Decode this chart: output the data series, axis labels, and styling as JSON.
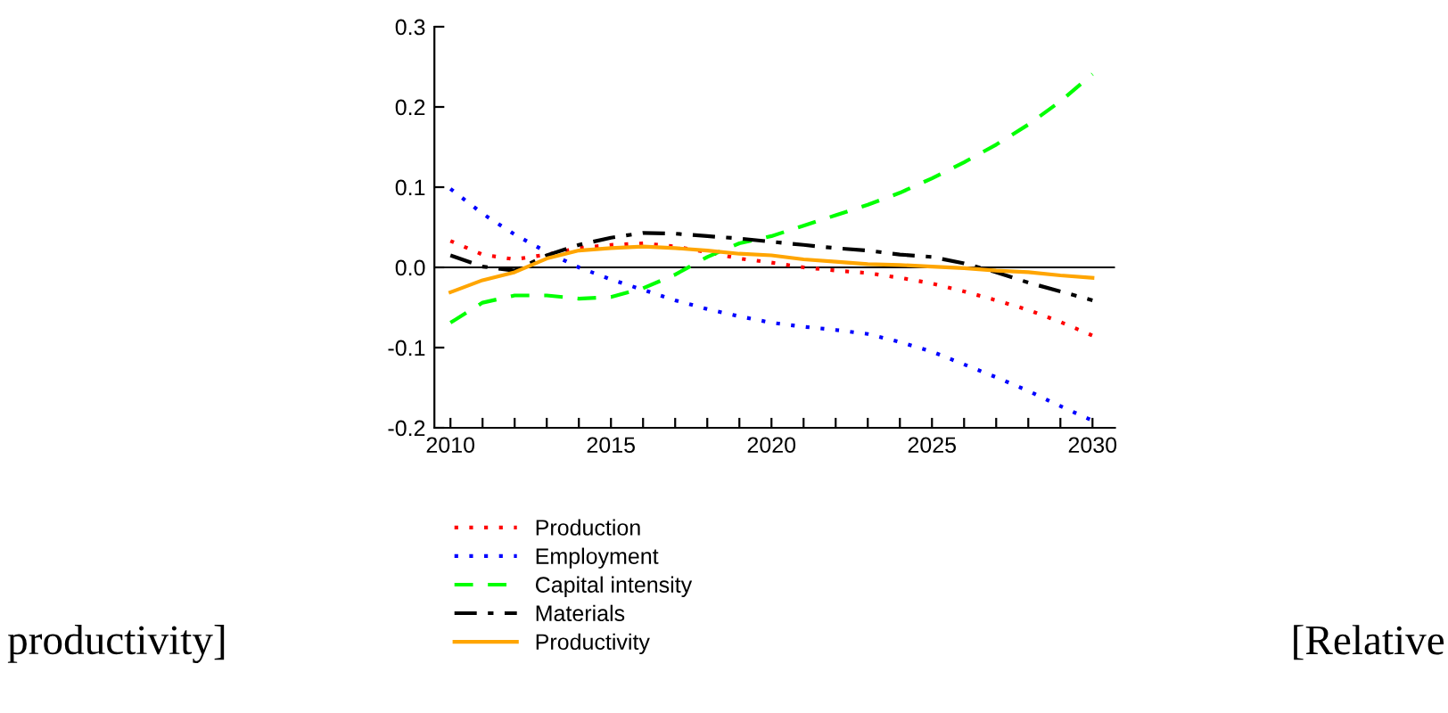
{
  "chart_data": {
    "type": "line",
    "x": [
      2010,
      2011,
      2012,
      2013,
      2014,
      2015,
      2016,
      2017,
      2018,
      2019,
      2020,
      2021,
      2022,
      2023,
      2024,
      2025,
      2026,
      2027,
      2028,
      2029,
      2030
    ],
    "series": [
      {
        "name": "Production",
        "color": "#ff0000",
        "line_style": "dotted",
        "values": [
          0.033,
          0.016,
          0.01,
          0.016,
          0.024,
          0.028,
          0.03,
          0.026,
          0.019,
          0.011,
          0.006,
          0.0,
          -0.004,
          -0.007,
          -0.013,
          -0.02,
          -0.03,
          -0.041,
          -0.053,
          -0.068,
          -0.085
        ]
      },
      {
        "name": "Employment",
        "color": "#0000ff",
        "line_style": "dotted",
        "values": [
          0.098,
          0.067,
          0.041,
          0.019,
          0.0,
          -0.015,
          -0.028,
          -0.041,
          -0.052,
          -0.061,
          -0.069,
          -0.074,
          -0.078,
          -0.083,
          -0.093,
          -0.105,
          -0.121,
          -0.137,
          -0.154,
          -0.173,
          -0.191
        ]
      },
      {
        "name": "Capital intensity",
        "color": "#00ff00",
        "line_style": "dashed",
        "values": [
          -0.069,
          -0.044,
          -0.035,
          -0.035,
          -0.039,
          -0.037,
          -0.026,
          -0.009,
          0.013,
          0.03,
          0.039,
          0.052,
          0.065,
          0.078,
          0.093,
          0.111,
          0.131,
          0.153,
          0.178,
          0.207,
          0.241
        ]
      },
      {
        "name": "Materials",
        "color": "#000000",
        "line_style": "dashdot",
        "values": [
          0.015,
          0.001,
          -0.004,
          0.015,
          0.028,
          0.037,
          0.043,
          0.042,
          0.039,
          0.036,
          0.032,
          0.028,
          0.024,
          0.021,
          0.016,
          0.013,
          0.005,
          -0.006,
          -0.019,
          -0.03,
          -0.041
        ]
      },
      {
        "name": "Productivity",
        "color": "#ffa500",
        "line_style": "solid",
        "values": [
          -0.031,
          -0.016,
          -0.006,
          0.011,
          0.021,
          0.024,
          0.026,
          0.024,
          0.021,
          0.017,
          0.015,
          0.01,
          0.007,
          0.004,
          0.003,
          0.001,
          -0.001,
          -0.004,
          -0.006,
          -0.01,
          -0.013
        ]
      }
    ],
    "xlim": [
      2009.5,
      2030.7
    ],
    "xticks": [
      2010,
      {
        "value": 2011,
        "label": null
      },
      {
        "value": 2012,
        "label": null
      },
      {
        "value": 2013,
        "label": null
      },
      {
        "value": 2014,
        "label": null
      },
      2015,
      {
        "value": 2016,
        "label": null
      },
      {
        "value": 2017,
        "label": null
      },
      {
        "value": 2018,
        "label": null
      },
      {
        "value": 2019,
        "label": null
      },
      2020,
      {
        "value": 2021,
        "label": null
      },
      {
        "value": 2022,
        "label": null
      },
      {
        "value": 2023,
        "label": null
      },
      {
        "value": 2024,
        "label": null
      },
      2025,
      {
        "value": 2026,
        "label": null
      },
      {
        "value": 2027,
        "label": null
      },
      {
        "value": 2028,
        "label": null
      },
      {
        "value": 2029,
        "label": null
      },
      2030
    ],
    "ylim": [
      -0.2,
      0.3
    ],
    "yticks": [
      -0.2,
      -0.1,
      {
        "value": 0,
        "label": "0.0"
      },
      0.1,
      0.2,
      0.3
    ],
    "ref_lines": [
      {
        "axis": "y",
        "value": 0,
        "color": "#000000"
      }
    ],
    "grid": false,
    "legend": "bottom",
    "annotations": [
      "productivity]",
      "[Relative"
    ]
  }
}
